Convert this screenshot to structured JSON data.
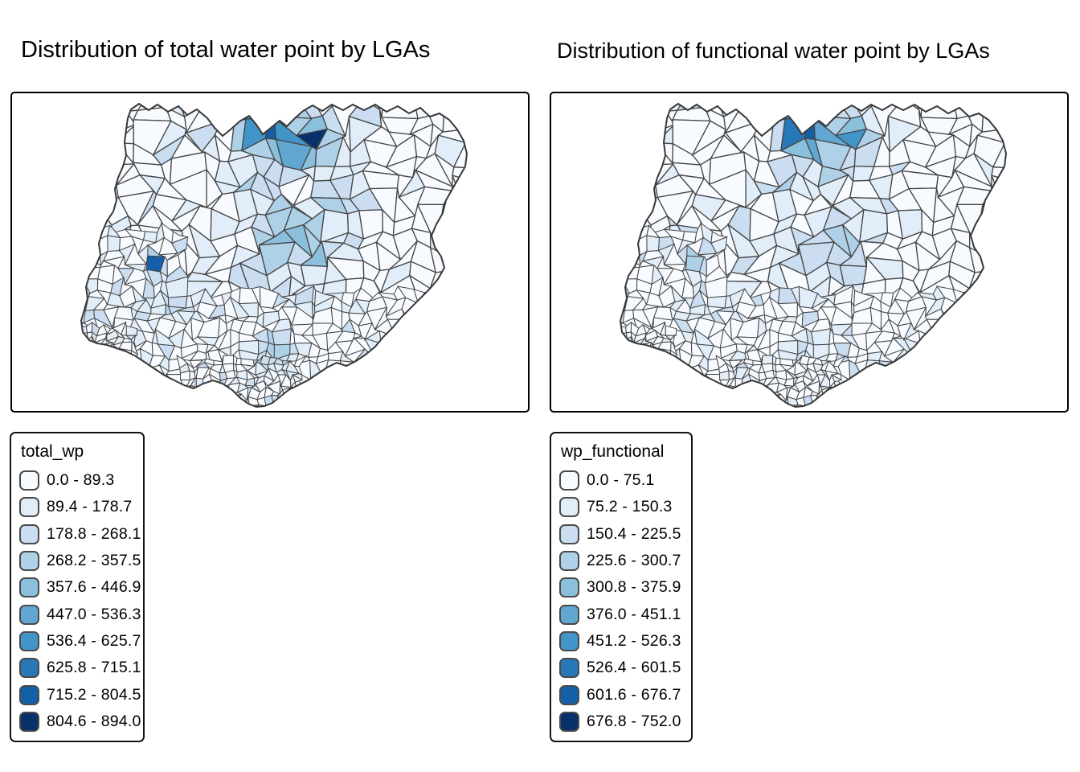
{
  "page": {
    "background": "#ffffff"
  },
  "chart_data": [
    {
      "type": "choropleth-map",
      "title": "Distribution of total water point by LGAs",
      "region": "Nigeria (LGAs)",
      "variable": "total_wp",
      "classification": "10 equal-interval classes",
      "value_range": [
        0.0,
        894.0
      ],
      "legend_position": "bottom-left, below map",
      "classes": [
        {
          "label": "0.0 - 89.3",
          "color": "#F7FBFF"
        },
        {
          "label": "89.4 - 178.7",
          "color": "#E1EDF8"
        },
        {
          "label": "178.8 - 268.1",
          "color": "#CBDEF1"
        },
        {
          "label": "268.2 - 357.5",
          "color": "#AFD1E7"
        },
        {
          "label": "357.6 - 446.9",
          "color": "#8BC0DD"
        },
        {
          "label": "447.0 - 536.3",
          "color": "#61A7D2"
        },
        {
          "label": "536.4 - 625.7",
          "color": "#4295C8"
        },
        {
          "label": "625.8 - 715.1",
          "color": "#2878B8"
        },
        {
          "label": "715.2 - 804.5",
          "color": "#1460A8"
        },
        {
          "label": "804.6 - 894.0",
          "color": "#08306B"
        }
      ]
    },
    {
      "type": "choropleth-map",
      "title": "Distribution of functional water point by LGAs",
      "region": "Nigeria (LGAs)",
      "variable": "wp_functional",
      "classification": "10 equal-interval classes",
      "value_range": [
        0.0,
        752.0
      ],
      "legend_position": "bottom-left, below map",
      "classes": [
        {
          "label": "0.0 - 75.1",
          "color": "#F7FBFF"
        },
        {
          "label": "75.2 - 150.3",
          "color": "#E1EDF8"
        },
        {
          "label": "150.4 - 225.5",
          "color": "#CBDEF1"
        },
        {
          "label": "225.6 - 300.7",
          "color": "#AFD1E7"
        },
        {
          "label": "300.8 - 375.9",
          "color": "#8BC0DD"
        },
        {
          "label": "376.0 - 451.1",
          "color": "#61A7D2"
        },
        {
          "label": "451.2 - 526.3",
          "color": "#4295C8"
        },
        {
          "label": "526.4 - 601.5",
          "color": "#2878B8"
        },
        {
          "label": "601.6 - 676.7",
          "color": "#1460A8"
        },
        {
          "label": "676.8 - 752.0",
          "color": "#08306B"
        }
      ]
    }
  ],
  "map_style": {
    "lga_border_color": "#454545",
    "country_border_color": "#383838",
    "panel_border_color": "#000000"
  }
}
